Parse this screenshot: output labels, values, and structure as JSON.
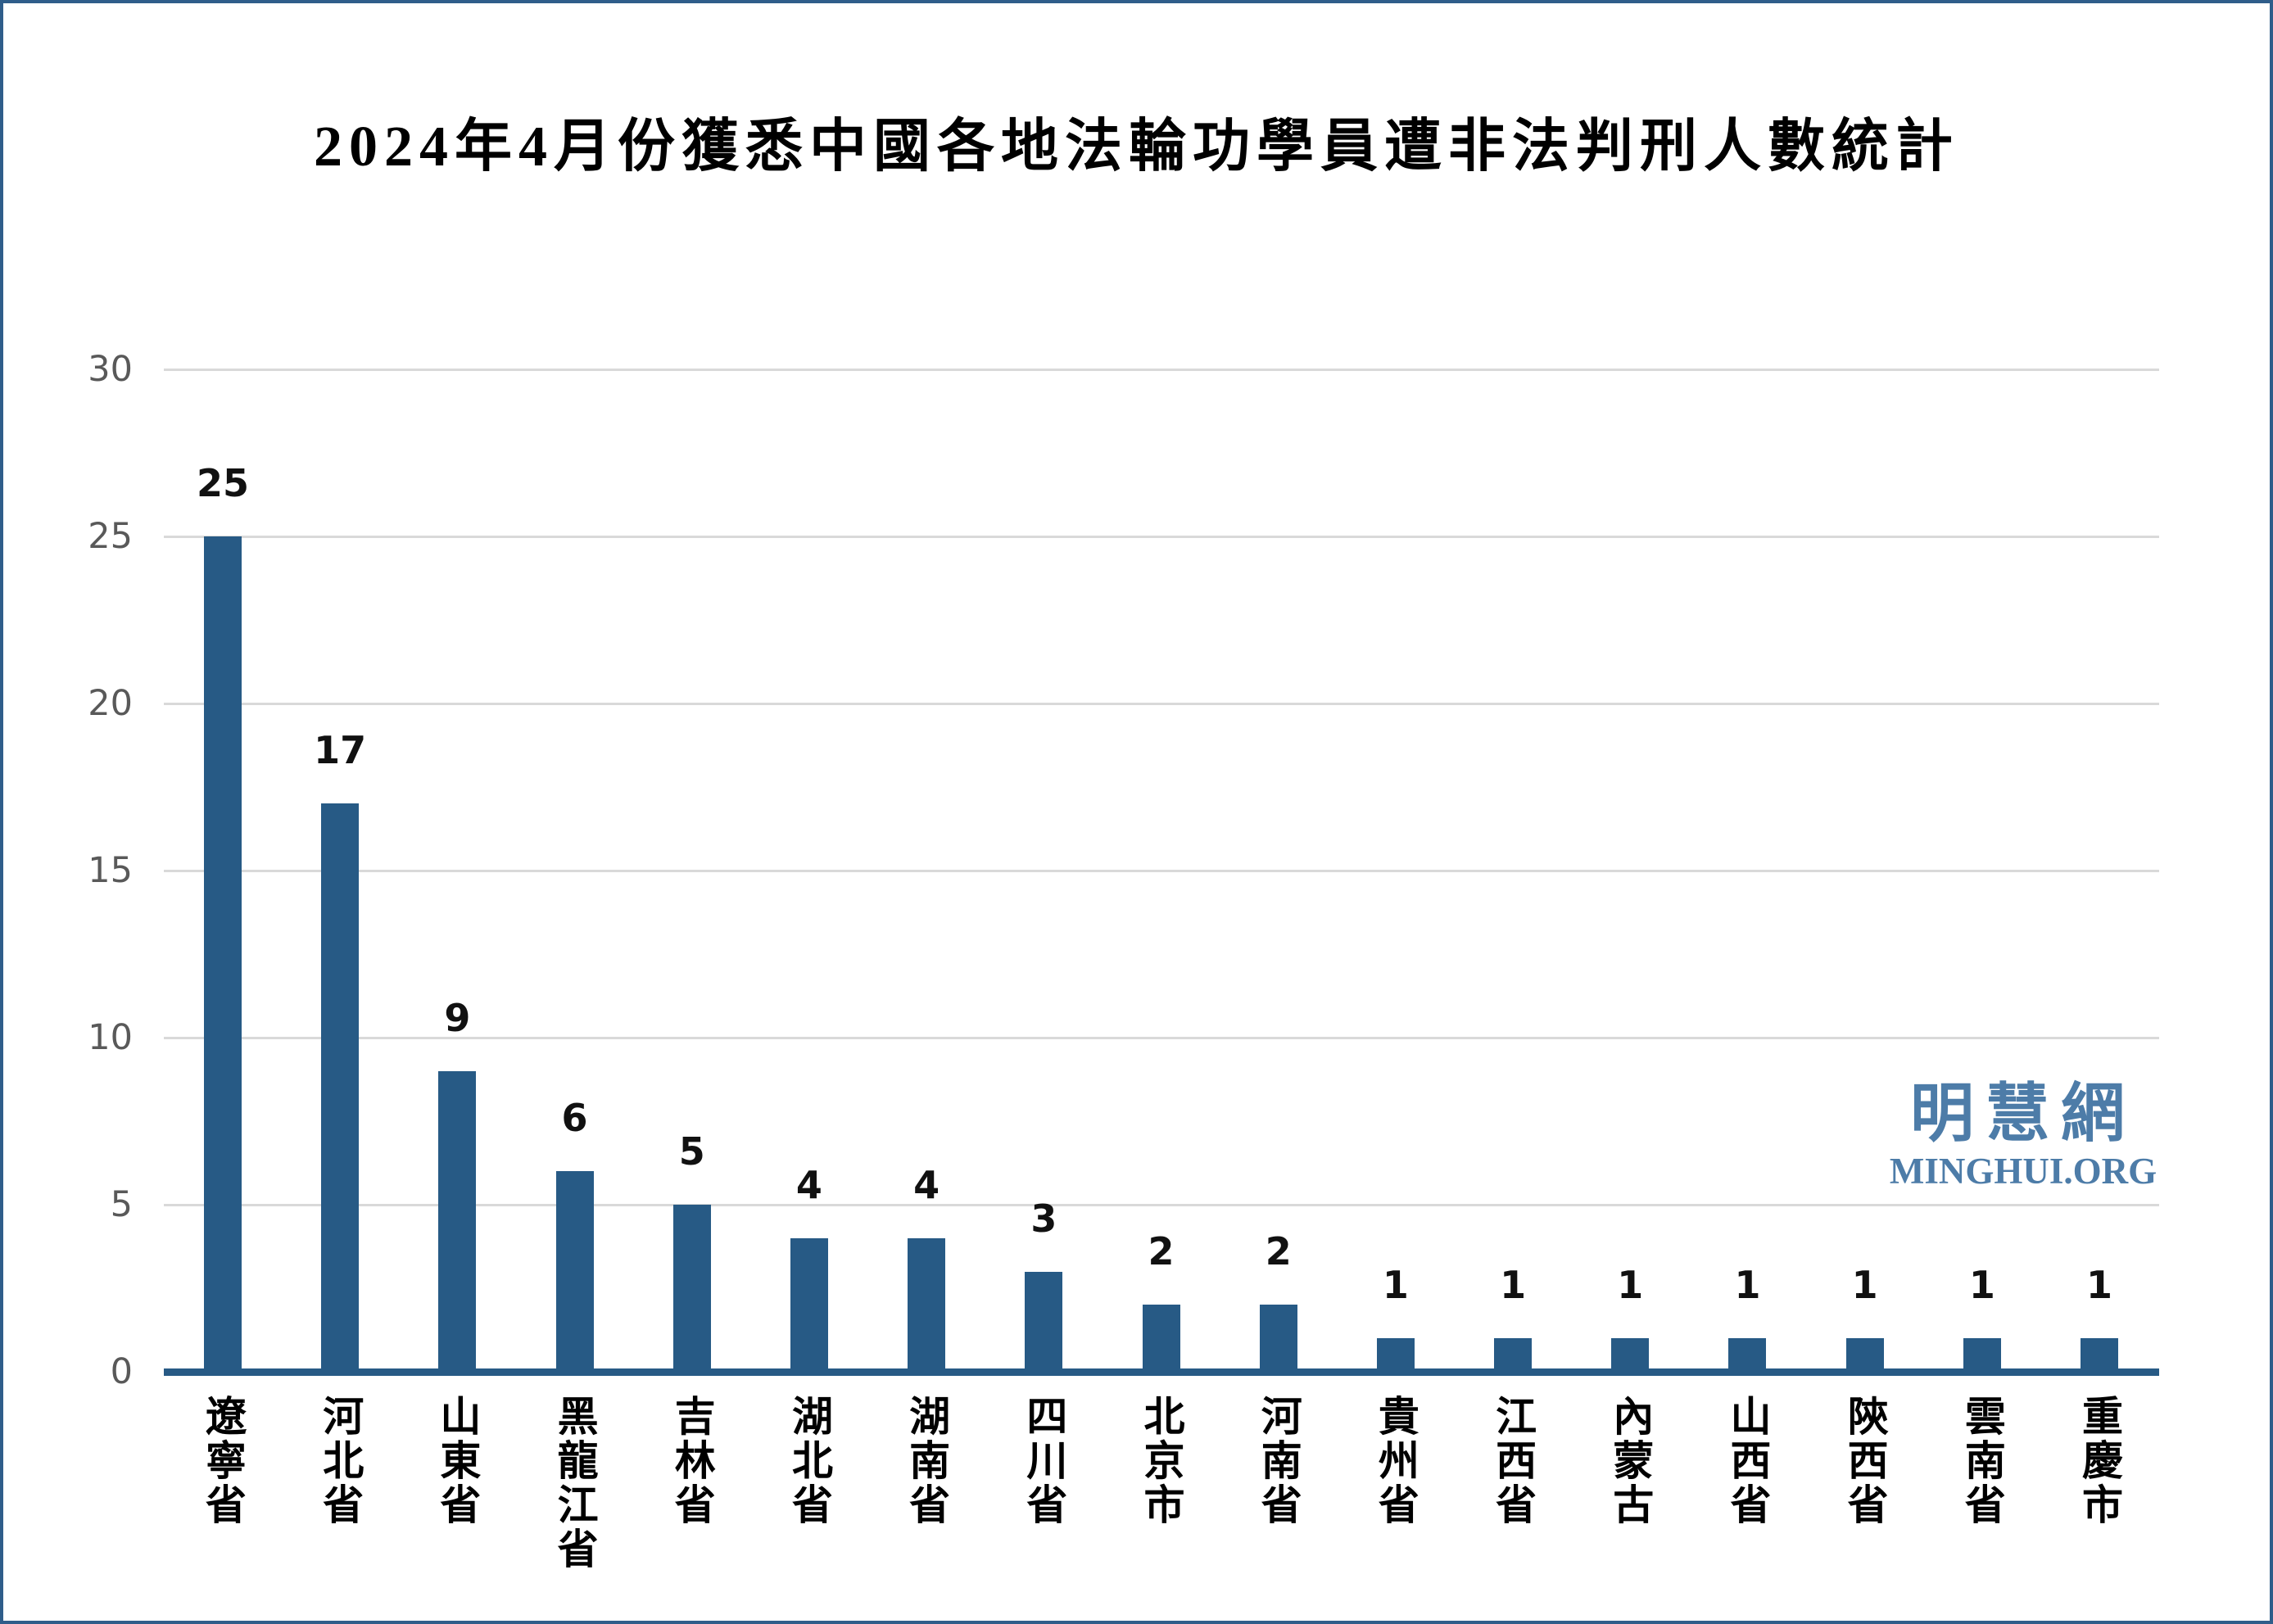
{
  "title": "2024年4月份獲悉中國各地法輪功學員遭非法判刑人數統計",
  "watermark": {
    "cjk": "明慧網",
    "latin": "MINGHUI.ORG"
  },
  "colors": {
    "bar": "#275A85",
    "axis": "#275A85",
    "grid": "#D9D9D9",
    "tick_label": "#595959",
    "value_label": "#111111",
    "category_label": "#000000",
    "title": "#000000",
    "watermark": "#4D7CA8",
    "frame": "#2F5D8A"
  },
  "chart_data": {
    "type": "bar",
    "title": "2024年4月份獲悉中國各地法輪功學員遭非法判刑人數統計",
    "categories": [
      "遼寧省",
      "河北省",
      "山東省",
      "黑龍江省",
      "吉林省",
      "湖北省",
      "湖南省",
      "四川省",
      "北京市",
      "河南省",
      "貴州省",
      "江西省",
      "內蒙古",
      "山西省",
      "陝西省",
      "雲南省",
      "重慶市"
    ],
    "values": [
      25,
      17,
      9,
      6,
      5,
      4,
      4,
      3,
      2,
      2,
      1,
      1,
      1,
      1,
      1,
      1,
      1
    ],
    "xlabel": "",
    "ylabel": "",
    "ylim": [
      0,
      30
    ],
    "yticks": [
      0,
      5,
      10,
      15,
      20,
      25,
      30
    ],
    "grid": true,
    "legend": false,
    "bar_color": "#275A85",
    "value_labels_shown": true,
    "category_label_orientation": "vertical-upright"
  }
}
